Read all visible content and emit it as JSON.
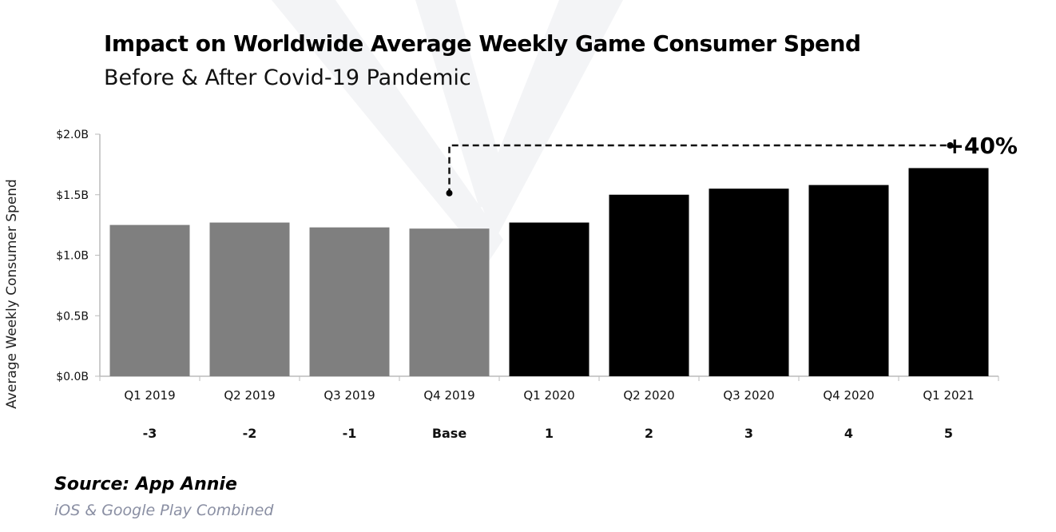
{
  "chart_data": {
    "type": "bar",
    "title": "Impact on Worldwide Average Weekly Game Consumer Spend",
    "subtitle": "Before & After Covid-19 Pandemic",
    "ylabel": "Average Weekly Consumer Spend",
    "xlabel": "",
    "ylim": [
      0,
      2.0
    ],
    "yticks": [
      "$0.0B",
      "$0.5B",
      "$1.0B",
      "$1.5B",
      "$2.0B"
    ],
    "ytick_values": [
      0,
      0.5,
      1.0,
      1.5,
      2.0
    ],
    "categories": [
      "Q1 2019",
      "Q2 2019",
      "Q3 2019",
      "Q4 2019",
      "Q1 2020",
      "Q2 2020",
      "Q3 2020",
      "Q4 2020",
      "Q1 2021"
    ],
    "relative_labels": [
      "-3",
      "-2",
      "-1",
      "Base",
      "1",
      "2",
      "3",
      "4",
      "5"
    ],
    "values": [
      1.25,
      1.27,
      1.23,
      1.22,
      1.27,
      1.5,
      1.55,
      1.58,
      1.72
    ],
    "units": "USD billions",
    "bar_colors": [
      "#7f7f7f",
      "#7f7f7f",
      "#7f7f7f",
      "#7f7f7f",
      "#000000",
      "#000000",
      "#000000",
      "#000000",
      "#000000"
    ],
    "annotation": {
      "text": "+40%",
      "from_category": "Q4 2019",
      "to_category": "Q1 2021"
    },
    "grid": false,
    "legend": "none"
  },
  "source": {
    "label": "Source: App Annie",
    "note": "iOS & Google Play Combined"
  }
}
